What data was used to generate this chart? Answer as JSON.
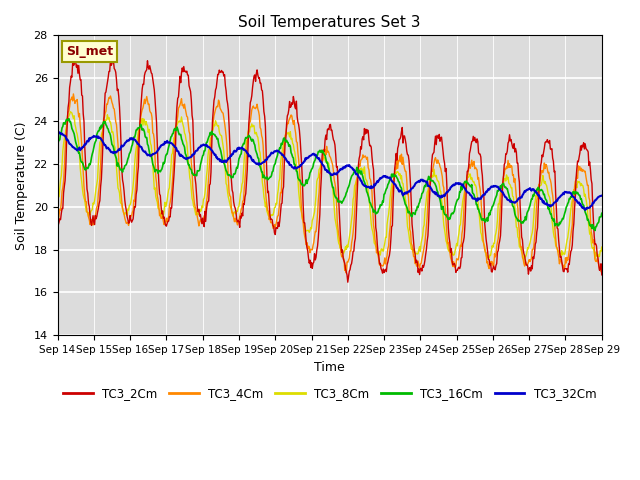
{
  "title": "Soil Temperatures Set 3",
  "xlabel": "Time",
  "ylabel": "Soil Temperature (C)",
  "ylim": [
    14,
    28
  ],
  "yticks": [
    14,
    16,
    18,
    20,
    22,
    24,
    26,
    28
  ],
  "xtick_labels": [
    "Sep 14",
    "Sep 15",
    "Sep 16",
    "Sep 17",
    "Sep 18",
    "Sep 19",
    "Sep 20",
    "Sep 21",
    "Sep 22",
    "Sep 23",
    "Sep 24",
    "Sep 25",
    "Sep 26",
    "Sep 27",
    "Sep 28",
    "Sep 29"
  ],
  "annotation_text": "SI_met",
  "annotation_color": "#8B0000",
  "annotation_bg": "#FFFFD0",
  "annotation_border": "#999900",
  "bg_color": "#DCDCDC",
  "line_colors": {
    "TC3_2Cm": "#CC0000",
    "TC3_4Cm": "#FF8800",
    "TC3_8Cm": "#DDDD00",
    "TC3_16Cm": "#00BB00",
    "TC3_32Cm": "#0000CC"
  },
  "legend_entries": [
    "TC3_2Cm",
    "TC3_4Cm",
    "TC3_8Cm",
    "TC3_16Cm",
    "TC3_32Cm"
  ]
}
